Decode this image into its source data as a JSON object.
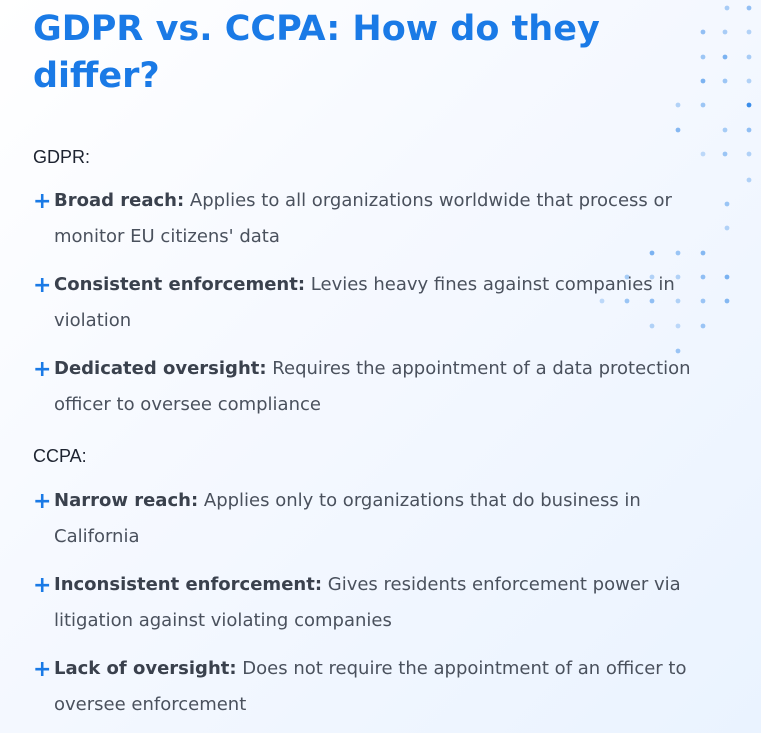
{
  "title": "GDPR vs. CCPA: How do they differ?",
  "accent_color": "#1a7ae6",
  "sections": [
    {
      "label": "GDPR:",
      "items": [
        {
          "icon": "plus-icon",
          "term": "Broad reach:",
          "text": "Applies to all organizations worldwide that process or monitor EU citizens' data"
        },
        {
          "icon": "plus-icon",
          "term": "Consistent enforcement:",
          "text": "Levies heavy fines against companies in violation"
        },
        {
          "icon": "plus-icon",
          "term": "Dedicated oversight:",
          "text": "Requires the appointment of a data protection officer to oversee compliance"
        }
      ]
    },
    {
      "label": "CCPA:",
      "items": [
        {
          "icon": "plus-icon",
          "term": "Narrow reach:",
          "text": "Applies only to organizations that do business in California"
        },
        {
          "icon": "plus-icon",
          "term": "Inconsistent enforcement:",
          "text": "Gives residents enforcement power via litigation against violating companies"
        },
        {
          "icon": "plus-icon",
          "term": "Lack of oversight:",
          "text": "Does not require the appointment of an officer to oversee enforcement"
        }
      ]
    }
  ]
}
